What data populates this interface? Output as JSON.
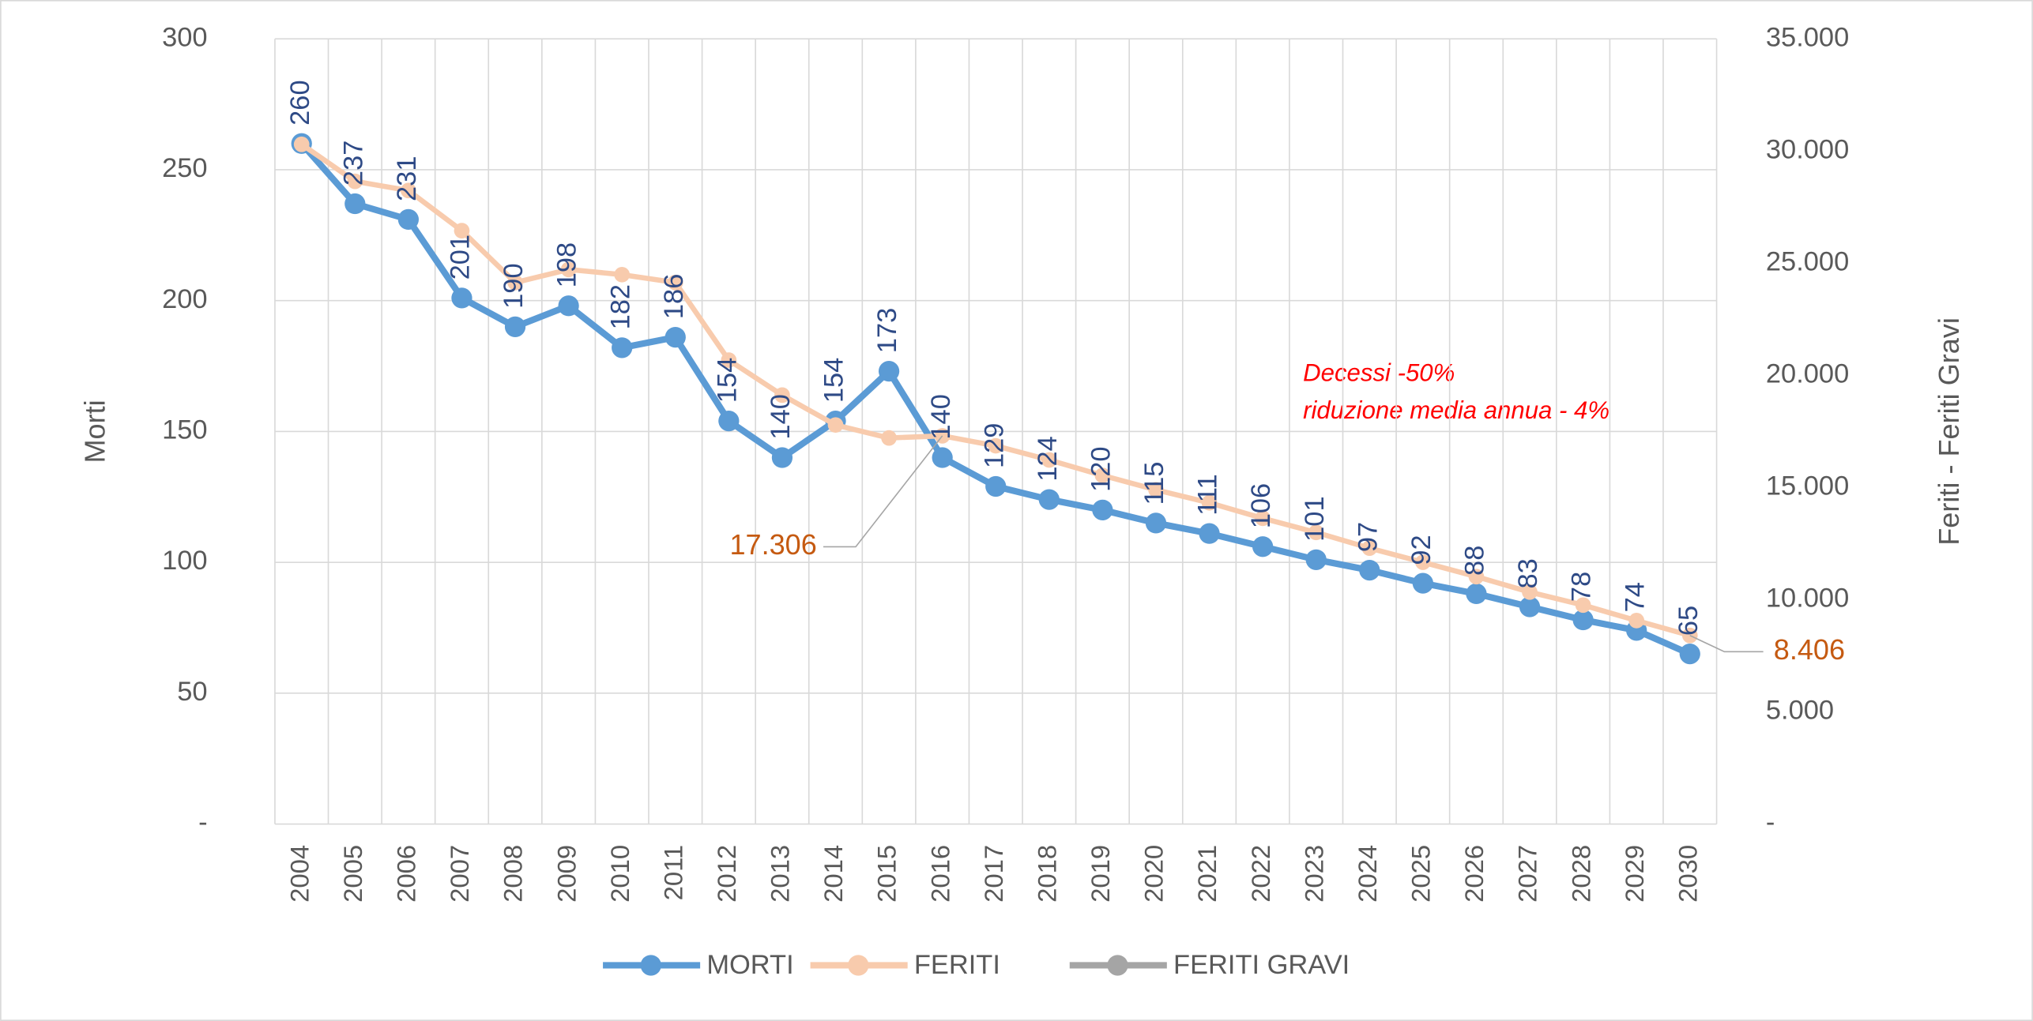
{
  "chart_data": {
    "type": "line",
    "y_label": "Morti",
    "y2_label": "Feriti - Feriti Gravi",
    "categories": [
      "2004",
      "2005",
      "2006",
      "2007",
      "2008",
      "2009",
      "2010",
      "2011",
      "2012",
      "2013",
      "2014",
      "2015",
      "2016",
      "2017",
      "2018",
      "2019",
      "2020",
      "2021",
      "2022",
      "2023",
      "2024",
      "2025",
      "2026",
      "2027",
      "2028",
      "2029",
      "2030"
    ],
    "series": [
      {
        "name": "MORTI",
        "color": "#5b9bd5",
        "label_color": "#2e4a86",
        "values": [
          260,
          237,
          231,
          201,
          190,
          198,
          182,
          186,
          154,
          140,
          154,
          173,
          140,
          129,
          124,
          120,
          115,
          111,
          106,
          101,
          97,
          92,
          88,
          83,
          78,
          74,
          65
        ]
      },
      {
        "name": "FERITI",
        "color": "#f8cbad",
        "label_color": "#c55a11",
        "axis": "y2",
        "values": [
          30300,
          28650,
          28240,
          26450,
          24140,
          24720,
          24490,
          24140,
          20680,
          19120,
          17790,
          17210,
          17306,
          16860,
          16230,
          15540,
          14900,
          14320,
          13630,
          13000,
          12300,
          11670,
          11030,
          10340,
          9760,
          9070,
          8406
        ],
        "value_labels": [
          null,
          null,
          null,
          null,
          null,
          null,
          null,
          null,
          null,
          null,
          null,
          null,
          "17.306",
          null,
          null,
          null,
          null,
          null,
          null,
          null,
          null,
          null,
          null,
          null,
          null,
          null,
          "8.406"
        ]
      },
      {
        "name": "FERITI GRAVI",
        "color": "#a5a5a5",
        "axis": "y2",
        "values": [
          null,
          null,
          null,
          null,
          null,
          null,
          null,
          null,
          null,
          null,
          null,
          null,
          null,
          null,
          null,
          null,
          null,
          null,
          null,
          null,
          null,
          null,
          null,
          null,
          null,
          null,
          null
        ]
      }
    ],
    "ylim": [
      0,
      300
    ],
    "yticks": [
      {
        "value": 0,
        "label": "-"
      },
      50,
      100,
      150,
      200,
      250,
      300
    ],
    "y2lim": [
      0,
      35000
    ],
    "y2ticks": [
      {
        "value": 0,
        "label": "-"
      },
      {
        "value": 5000,
        "label": "5.000"
      },
      {
        "value": 10000,
        "label": "10.000"
      },
      {
        "value": 15000,
        "label": "15.000"
      },
      {
        "value": 20000,
        "label": "20.000"
      },
      {
        "value": 25000,
        "label": "25.000"
      },
      {
        "value": 30000,
        "label": "30.000"
      },
      {
        "value": 35000,
        "label": "35.000"
      }
    ],
    "annotations": [
      "Decessi -50%",
      "riduzione media annua - 4%"
    ],
    "annotation_color": "#ff0000",
    "grid": true,
    "legend": "bottom"
  }
}
